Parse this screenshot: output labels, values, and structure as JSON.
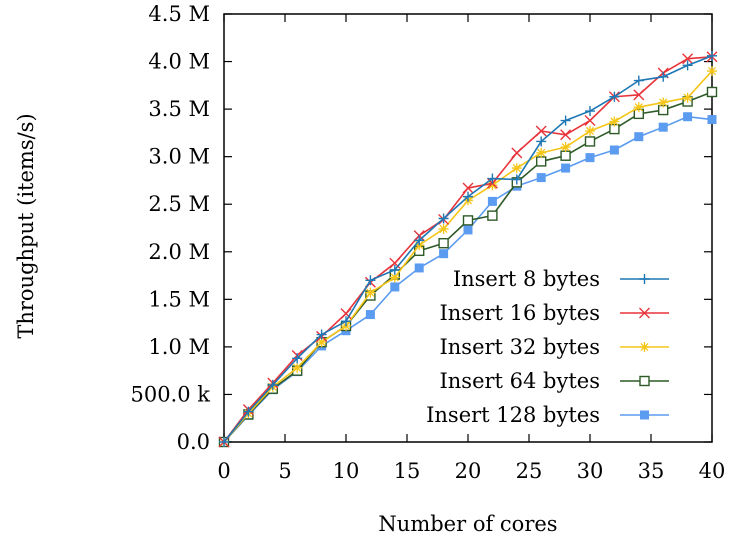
{
  "chart_data": {
    "type": "line",
    "title": "",
    "xlabel": "Number of cores",
    "ylabel": "Throughput (items/s)",
    "xlim": [
      0,
      40
    ],
    "ylim": [
      0,
      4500000
    ],
    "xticks": [
      0,
      5,
      10,
      15,
      20,
      25,
      30,
      35,
      40
    ],
    "xtick_labels": [
      "0",
      "5",
      "10",
      "15",
      "20",
      "25",
      "30",
      "35",
      "40"
    ],
    "yticks": [
      0,
      500000,
      1000000,
      1500000,
      2000000,
      2500000,
      3000000,
      3500000,
      4000000,
      4500000
    ],
    "ytick_labels": [
      "0.0",
      "500.0 k",
      "1.0 M",
      "1.5 M",
      "2.0 M",
      "2.5 M",
      "3.0 M",
      "3.5 M",
      "4.0 M",
      "4.5 M"
    ],
    "grid": false,
    "legend_position": "bottom-right",
    "x": [
      0,
      2,
      4,
      6,
      8,
      10,
      12,
      14,
      16,
      18,
      20,
      22,
      24,
      26,
      28,
      30,
      32,
      34,
      36,
      38,
      40
    ],
    "series": [
      {
        "name": "Insert 8 bytes",
        "color": "#1f77b4",
        "marker": "plus",
        "values": [
          0,
          320000,
          600000,
          880000,
          1130000,
          1270000,
          1700000,
          1810000,
          2120000,
          2350000,
          2580000,
          2770000,
          2760000,
          3160000,
          3380000,
          3480000,
          3630000,
          3800000,
          3840000,
          3960000,
          4060000
        ]
      },
      {
        "name": "Insert 16 bytes",
        "color": "#e8333b",
        "marker": "cross",
        "values": [
          0,
          340000,
          620000,
          910000,
          1110000,
          1350000,
          1680000,
          1880000,
          2170000,
          2340000,
          2670000,
          2720000,
          3040000,
          3270000,
          3230000,
          3380000,
          3630000,
          3650000,
          3880000,
          4030000,
          4050000
        ]
      },
      {
        "name": "Insert 32 bytes",
        "color": "#f5c518",
        "marker": "star",
        "values": [
          0,
          300000,
          580000,
          780000,
          1050000,
          1220000,
          1570000,
          1730000,
          2070000,
          2240000,
          2540000,
          2700000,
          2880000,
          3040000,
          3100000,
          3270000,
          3370000,
          3520000,
          3570000,
          3620000,
          3900000
        ]
      },
      {
        "name": "Insert 64 bytes",
        "color": "#2d5a27",
        "marker": "open-square",
        "values": [
          0,
          290000,
          560000,
          750000,
          1050000,
          1220000,
          1540000,
          1760000,
          2010000,
          2090000,
          2330000,
          2380000,
          2730000,
          2950000,
          3010000,
          3160000,
          3290000,
          3450000,
          3490000,
          3580000,
          3680000
        ]
      },
      {
        "name": "Insert 128 bytes",
        "color": "#5b9bf0",
        "marker": "filled-square",
        "values": [
          0,
          280000,
          550000,
          740000,
          1010000,
          1170000,
          1340000,
          1630000,
          1830000,
          1980000,
          2230000,
          2530000,
          2690000,
          2780000,
          2880000,
          2990000,
          3070000,
          3210000,
          3310000,
          3420000,
          3390000
        ]
      }
    ]
  }
}
